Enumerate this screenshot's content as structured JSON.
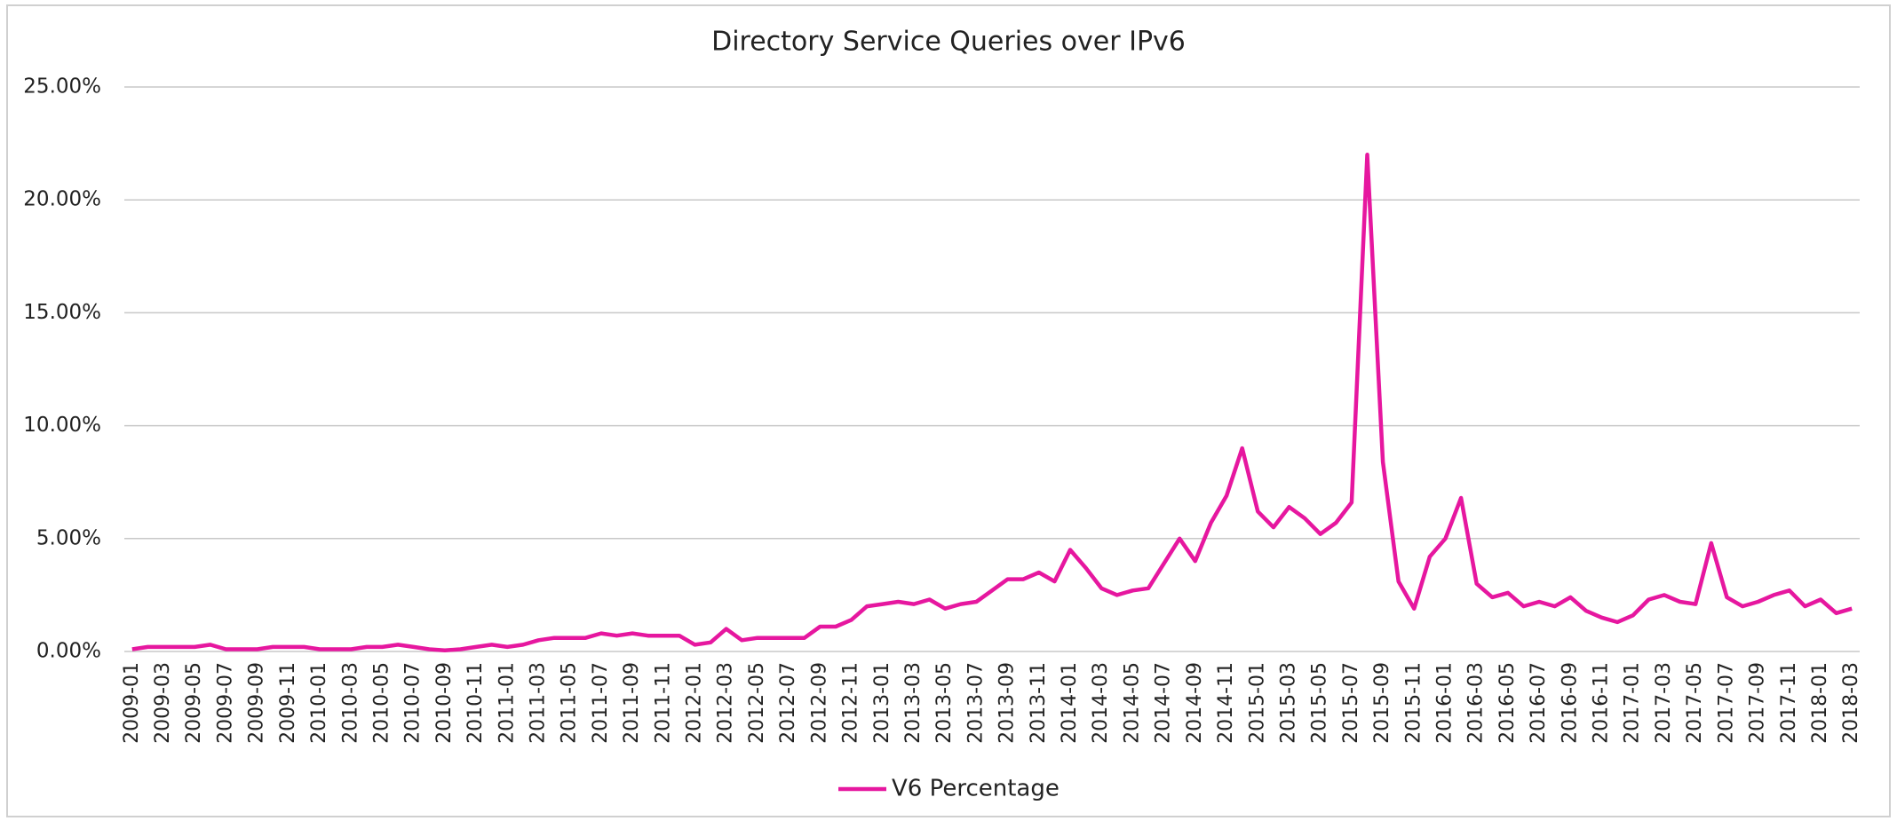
{
  "chart_data": {
    "type": "line",
    "title": "Directory Service Queries over IPv6",
    "categories": [
      "2009-01",
      null,
      "2009-03",
      null,
      "2009-05",
      null,
      "2009-07",
      null,
      "2009-09",
      null,
      "2009-11",
      null,
      "2010-01",
      null,
      "2010-03",
      null,
      "2010-05",
      null,
      "2010-07",
      null,
      "2010-09",
      null,
      "2010-11",
      null,
      "2011-01",
      null,
      "2011-03",
      null,
      "2011-05",
      null,
      "2011-07",
      null,
      "2011-09",
      null,
      "2011-11",
      null,
      "2012-01",
      null,
      "2012-03",
      null,
      "2012-05",
      null,
      "2012-07",
      null,
      "2012-09",
      null,
      "2012-11",
      null,
      "2013-01",
      null,
      "2013-03",
      null,
      "2013-05",
      null,
      "2013-07",
      null,
      "2013-09",
      null,
      "2013-11",
      null,
      "2014-01",
      null,
      "2014-03",
      null,
      "2014-05",
      null,
      "2014-07",
      null,
      "2014-09",
      null,
      "2014-11",
      null,
      "2015-01",
      null,
      "2015-03",
      null,
      "2015-05",
      null,
      "2015-07",
      null,
      "2015-09",
      null,
      "2015-11",
      null,
      "2016-01",
      null,
      "2016-03",
      null,
      "2016-05",
      null,
      "2016-07",
      null,
      "2016-09",
      null,
      "2016-11",
      null,
      "2017-01",
      null,
      "2017-03",
      null,
      "2017-05",
      null,
      "2017-07",
      null,
      "2017-09",
      null,
      "2017-11",
      null,
      "2018-01",
      null,
      "2018-03"
    ],
    "series": [
      {
        "name": "V6 Percentage",
        "color": "#e6179f",
        "values": [
          0.1,
          0.2,
          0.2,
          0.2,
          0.2,
          0.3,
          0.1,
          0.1,
          0.1,
          0.2,
          0.2,
          0.2,
          0.1,
          0.1,
          0.1,
          0.2,
          0.2,
          0.3,
          0.2,
          0.1,
          0.05,
          0.1,
          0.2,
          0.3,
          0.2,
          0.3,
          0.5,
          0.6,
          0.6,
          0.6,
          0.8,
          0.7,
          0.8,
          0.7,
          0.7,
          0.7,
          0.3,
          0.4,
          1.0,
          0.5,
          0.6,
          0.6,
          0.6,
          0.6,
          1.1,
          1.1,
          1.4,
          2.0,
          2.1,
          2.2,
          2.1,
          2.3,
          1.9,
          2.1,
          2.2,
          2.7,
          3.2,
          3.2,
          3.5,
          3.1,
          4.5,
          3.7,
          2.8,
          2.5,
          2.7,
          2.8,
          3.9,
          5.0,
          4.0,
          5.7,
          6.9,
          9.0,
          6.2,
          5.5,
          6.4,
          5.9,
          5.2,
          5.7,
          6.6,
          22.0,
          8.4,
          3.1,
          1.9,
          4.2,
          5.0,
          6.8,
          3.0,
          2.4,
          2.6,
          2.0,
          2.2,
          2.0,
          2.4,
          1.8,
          1.5,
          1.3,
          1.6,
          2.3,
          2.5,
          2.2,
          2.1,
          4.8,
          2.4,
          2.0,
          2.2,
          2.5,
          2.7,
          2.0,
          2.3,
          1.7,
          1.9
        ]
      }
    ],
    "ylim": [
      0,
      25
    ],
    "yticks": [
      {
        "value": 0,
        "label": "0.00%"
      },
      {
        "value": 5,
        "label": "5.00%"
      },
      {
        "value": 10,
        "label": "10.00%"
      },
      {
        "value": 15,
        "label": "15.00%"
      },
      {
        "value": 20,
        "label": "20.00%"
      },
      {
        "value": 25,
        "label": "25.00%"
      }
    ],
    "grid": true,
    "legend": "bottom"
  }
}
